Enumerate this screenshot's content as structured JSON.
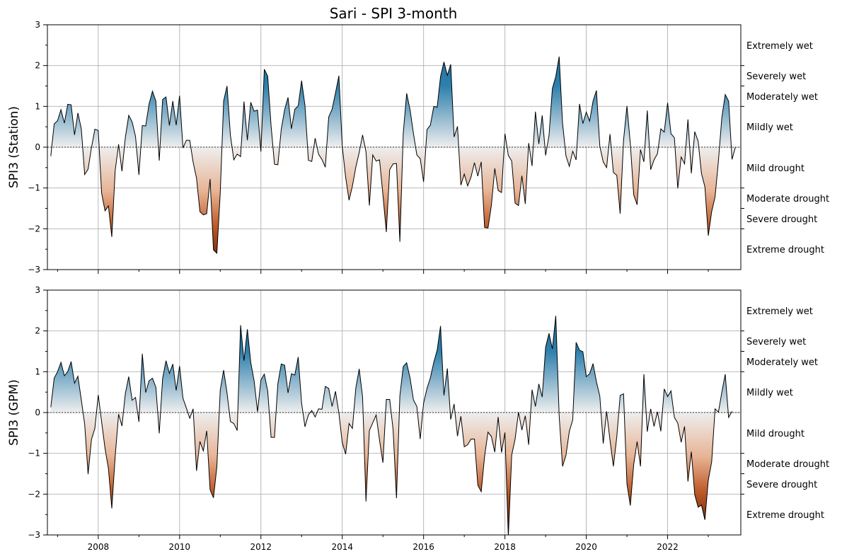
{
  "chart_data": {
    "type": "area",
    "title": "Sari - SPI 3-month",
    "colors": {
      "wet_dark": "#0b5f91",
      "wet_light": "#dbe9ef",
      "neutral": "#eeeeee",
      "dry_light": "#f3ddd0",
      "dry_dark": "#7a1e02",
      "line": "#000000"
    },
    "x_ticks": [
      "2008",
      "2010",
      "2012",
      "2014",
      "2016",
      "2018",
      "2020",
      "2022"
    ],
    "x_range": [
      2006.75,
      2023.8
    ],
    "y_ticks": [
      "3",
      "2",
      "1",
      "0",
      "−1",
      "−2",
      "−3"
    ],
    "ylim": [
      -3,
      3
    ],
    "grid": true,
    "categories": [
      {
        "label": "Extremely wet",
        "y": 2.5
      },
      {
        "label": "Severely wet",
        "y": 1.75
      },
      {
        "label": "Moderately wet",
        "y": 1.25
      },
      {
        "label": "Mildly wet",
        "y": 0.5
      },
      {
        "label": "Mild drought",
        "y": -0.5
      },
      {
        "label": "Moderate drought",
        "y": -1.25
      },
      {
        "label": "Severe drought",
        "y": -1.75
      },
      {
        "label": "Extreme drought",
        "y": -2.5
      }
    ],
    "category_boundaries": [
      2,
      1.5,
      1,
      -1,
      -1.5,
      -2
    ],
    "panels": [
      {
        "ylabel": "SPI3 (Station)",
        "series": [
          {
            "x_start": "2006-11",
            "step": "1 month",
            "values": [
              -0.22,
              0.57,
              0.65,
              0.92,
              0.59,
              1.05,
              1.04,
              0.3,
              0.84,
              0.45,
              -0.67,
              -0.54,
              -0.01,
              0.44,
              0.41,
              -1.13,
              -1.56,
              -1.44,
              -2.2,
              -0.57,
              0.07,
              -0.59,
              0.24,
              0.78,
              0.62,
              0.26,
              -0.68,
              0.53,
              0.52,
              1.06,
              1.37,
              1.13,
              -0.33,
              1.17,
              1.23,
              0.53,
              1.13,
              0.54,
              1.26,
              -0.02,
              0.17,
              0.17,
              -0.37,
              -0.76,
              -1.58,
              -1.66,
              -1.63,
              -0.78,
              -2.52,
              -2.6,
              -1.12,
              1.13,
              1.5,
              0.29,
              -0.31,
              -0.17,
              -0.23,
              1.12,
              0.17,
              1.1,
              0.88,
              0.91,
              -0.11,
              1.91,
              1.74,
              0.52,
              -0.42,
              -0.43,
              0.44,
              0.92,
              1.22,
              0.45,
              0.93,
              1.01,
              1.63,
              1.02,
              -0.32,
              -0.35,
              0.22,
              -0.17,
              -0.3,
              -0.49,
              0.74,
              0.93,
              1.33,
              1.75,
              0.02,
              -0.74,
              -1.3,
              -0.95,
              -0.49,
              -0.13,
              0.3,
              -0.11,
              -1.43,
              -0.19,
              -0.34,
              -0.31,
              -1.17,
              -2.08,
              -0.55,
              -0.41,
              -0.4,
              -2.32,
              0.34,
              1.32,
              0.92,
              0.34,
              -0.19,
              -0.28,
              -0.85,
              0.43,
              0.54,
              1.0,
              0.98,
              1.73,
              2.09,
              1.76,
              2.03,
              0.25,
              0.51,
              -0.93,
              -0.66,
              -0.95,
              -0.73,
              -0.38,
              -0.71,
              -0.36,
              -1.97,
              -1.98,
              -1.43,
              -0.52,
              -1.06,
              -1.11,
              0.33,
              -0.2,
              -0.34,
              -1.37,
              -1.43,
              -0.7,
              -1.39,
              0.1,
              -0.46,
              0.87,
              0.08,
              0.78,
              -0.2,
              0.28,
              1.44,
              1.73,
              2.22,
              0.59,
              -0.21,
              -0.47,
              -0.1,
              -0.31,
              1.06,
              0.58,
              0.86,
              0.64,
              1.13,
              1.39,
              0.02,
              -0.36,
              -0.5,
              0.32,
              -0.62,
              -0.69,
              -1.63,
              0.17,
              1.01,
              0.08,
              -1.17,
              -1.41,
              -0.06,
              -0.36,
              0.9,
              -0.55,
              -0.31,
              -0.16,
              0.45,
              0.37,
              1.09,
              0.33,
              0.23,
              -1.01,
              -0.24,
              -0.41,
              0.68,
              -0.64,
              0.38,
              0.15,
              -0.65,
              -0.97,
              -2.17,
              -1.58,
              -1.22,
              -0.33,
              0.73,
              1.29,
              1.13,
              -0.3,
              0.0
            ]
          }
        ]
      },
      {
        "ylabel": "SPI3 (GPM)",
        "series": [
          {
            "x_start": "2006-11",
            "step": "1 month",
            "values": [
              0.13,
              0.84,
              1.0,
              1.23,
              0.9,
              1.0,
              1.25,
              0.72,
              0.89,
              0.31,
              -0.29,
              -1.51,
              -0.66,
              -0.39,
              0.43,
              -0.23,
              -0.88,
              -1.37,
              -2.35,
              -1.07,
              -0.04,
              -0.33,
              0.47,
              0.88,
              0.3,
              0.37,
              -0.23,
              1.44,
              0.49,
              0.78,
              0.84,
              0.62,
              -0.51,
              0.84,
              1.27,
              0.96,
              1.19,
              0.54,
              1.14,
              0.35,
              0.11,
              -0.14,
              0.09,
              -1.43,
              -0.71,
              -0.94,
              -0.45,
              -1.89,
              -2.09,
              -1.33,
              0.55,
              1.04,
              0.48,
              -0.22,
              -0.27,
              -0.44,
              2.14,
              1.27,
              2.04,
              1.23,
              0.77,
              0.02,
              0.8,
              0.94,
              0.53,
              -0.61,
              -0.61,
              0.71,
              1.19,
              1.16,
              0.48,
              0.95,
              0.92,
              1.36,
              0.23,
              -0.35,
              -0.06,
              0.05,
              -0.11,
              0.09,
              0.08,
              0.64,
              0.59,
              0.15,
              0.52,
              -0.01,
              -0.74,
              -1.02,
              -0.27,
              -0.39,
              0.6,
              1.07,
              0.38,
              -2.18,
              -0.44,
              -0.25,
              -0.06,
              -0.68,
              -1.23,
              0.32,
              0.32,
              -0.42,
              -2.1,
              0.41,
              1.13,
              1.22,
              0.85,
              0.31,
              0.15,
              -0.65,
              0.23,
              0.59,
              0.85,
              1.23,
              1.53,
              2.12,
              0.42,
              1.08,
              -0.17,
              0.21,
              -0.58,
              -0.09,
              -0.84,
              -0.79,
              -0.65,
              -0.65,
              -1.78,
              -1.94,
              -1.07,
              -0.48,
              -0.59,
              -0.97,
              -0.11,
              -0.98,
              -0.49,
              -3.05,
              -1.04,
              -0.65,
              0.01,
              -0.43,
              -0.08,
              -0.79,
              0.56,
              0.15,
              0.7,
              0.38,
              1.6,
              1.94,
              1.56,
              2.37,
              -0.08,
              -1.32,
              -1.05,
              -0.46,
              -0.18,
              1.72,
              1.53,
              1.49,
              0.88,
              0.95,
              1.2,
              0.75,
              0.4,
              -0.76,
              0.03,
              -0.68,
              -1.32,
              -0.6,
              0.42,
              0.46,
              -1.75,
              -2.28,
              -1.27,
              -0.71,
              -1.32,
              0.94,
              -0.47,
              0.09,
              -0.34,
              0.02,
              -0.46,
              0.58,
              0.39,
              0.53,
              -0.12,
              -0.26,
              -0.73,
              -0.34,
              -1.69,
              -0.96,
              -2.01,
              -2.32,
              -2.27,
              -2.63,
              -1.66,
              -1.21,
              0.09,
              0.01,
              0.5,
              0.94,
              -0.12,
              0.03
            ]
          }
        ]
      }
    ]
  }
}
